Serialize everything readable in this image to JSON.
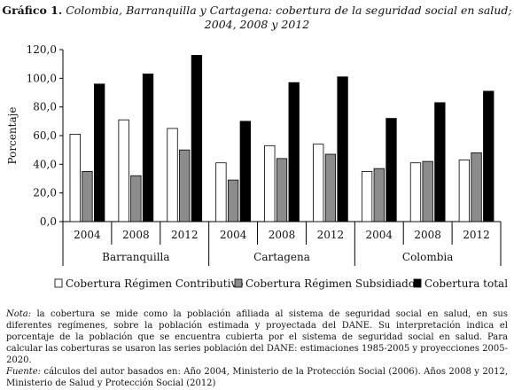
{
  "header": {
    "lead": "Gráfico 1.",
    "line1": "Colombia, Barranquilla y Cartagena: cobertura de la seguridad social en salud;",
    "line2": "2004, 2008 y 2012"
  },
  "chart_data": {
    "type": "bar",
    "ylabel": "Porcentaje",
    "ylim": [
      0,
      120
    ],
    "ytick_step": 20,
    "ytick_labels": [
      "0,0",
      "20,0",
      "40,0",
      "60,0",
      "80,0",
      "100,0",
      "120,0"
    ],
    "grid": false,
    "legend_position": "bottom",
    "groups": [
      {
        "name": "Barranquilla",
        "categories": [
          "2004",
          "2008",
          "2012"
        ]
      },
      {
        "name": "Cartagena",
        "categories": [
          "2004",
          "2008",
          "2012"
        ]
      },
      {
        "name": "Colombia",
        "categories": [
          "2004",
          "2008",
          "2012"
        ]
      }
    ],
    "series": [
      {
        "name": "Cobertura Régimen Contributivo",
        "color": "#ffffff",
        "values": [
          61,
          71,
          65,
          41,
          53,
          54,
          35,
          41,
          43
        ]
      },
      {
        "name": "Cobertura Régimen Subsidiado",
        "color": "#8c8c8c",
        "values": [
          35,
          32,
          50,
          29,
          44,
          47,
          37,
          42,
          48
        ]
      },
      {
        "name": "Cobertura total",
        "color": "#000000",
        "values": [
          96,
          103,
          116,
          70,
          97,
          101,
          72,
          83,
          91
        ]
      }
    ]
  },
  "notes": {
    "nota_label": "Nota:",
    "nota_text": " la cobertura se mide como la población afiliada al sistema de seguridad social en salud, en sus diferentes regímenes, sobre la población estimada y proyectada del DANE. Su interpretación indica el porcentaje de la población que se encuentra cubierta por el sistema de seguridad social en salud. Para calcular las coberturas se usaron las series población del DANE: estimaciones 1985-2005 y proyecciones 2005-2020.",
    "fuente_label": "Fuente:",
    "fuente_text": " cálculos del autor basados en: Año 2004, Ministerio de la Protección Social (2006). Años 2008 y 2012, Ministerio de Salud y Protección Social (2012)"
  }
}
